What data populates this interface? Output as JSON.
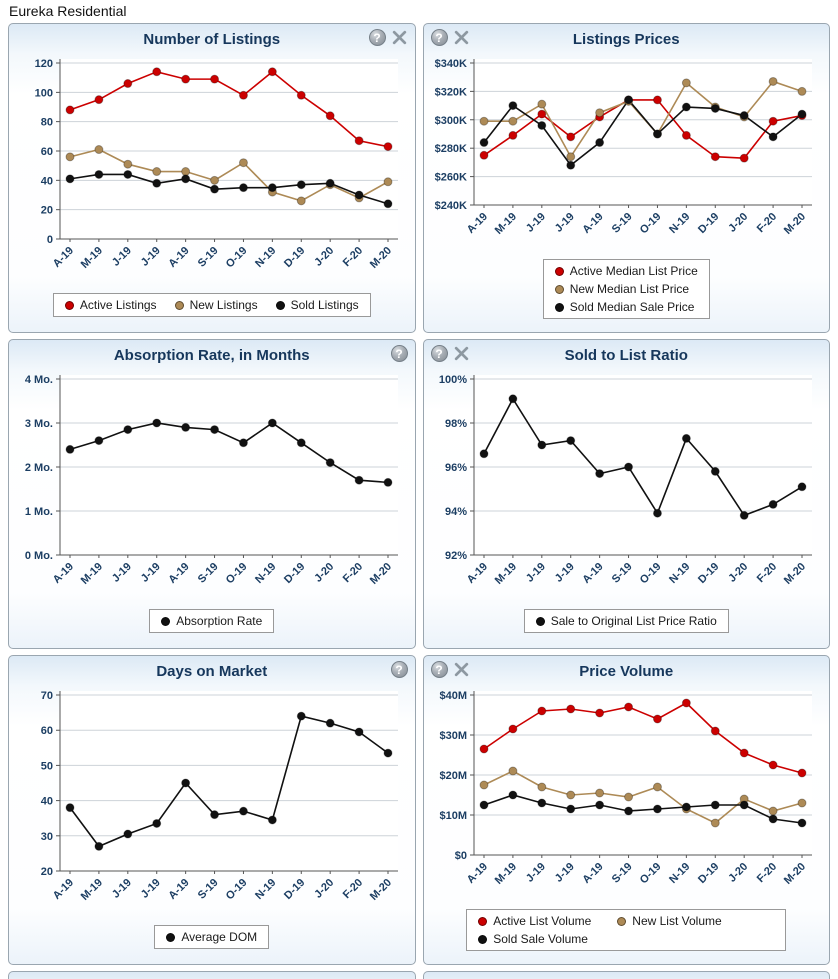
{
  "page_title": "Eureka Residential",
  "icons": {
    "help_glyph": "?"
  },
  "colors": {
    "active_series": "#cc0000",
    "new_series": "#ad8a56",
    "sold_series": "#111111",
    "panel_title": "#16375c",
    "axis_label": "#1c3e63",
    "grid_line": "#cdd3d8"
  },
  "panels": [
    {
      "title": "Number of Listings",
      "icons_position": "right",
      "has_tools_icon": true
    },
    {
      "title": "Listings Prices",
      "icons_position": "left",
      "has_tools_icon": true
    },
    {
      "title": "Absorption Rate, in Months",
      "icons_position": "right",
      "has_tools_icon": false
    },
    {
      "title": "Sold to List Ratio",
      "icons_position": "left",
      "has_tools_icon": true
    },
    {
      "title": "Days on Market",
      "icons_position": "right",
      "has_tools_icon": false
    },
    {
      "title": "Price Volume",
      "icons_position": "left",
      "has_tools_icon": true
    }
  ],
  "chart_data": [
    {
      "type": "line",
      "title": "Number of Listings",
      "categories": [
        "A-19",
        "M-19",
        "J-19",
        "J-19",
        "A-19",
        "S-19",
        "O-19",
        "N-19",
        "D-19",
        "J-20",
        "F-20",
        "M-20"
      ],
      "series": [
        {
          "name": "Active Listings",
          "color": "#cc0000",
          "values": [
            88,
            95,
            106,
            114,
            109,
            109,
            98,
            114,
            98,
            84,
            67,
            63
          ]
        },
        {
          "name": "New Listings",
          "color": "#ad8a56",
          "values": [
            56,
            61,
            51,
            46,
            46,
            40,
            52,
            32,
            26,
            37,
            28,
            39
          ]
        },
        {
          "name": "Sold Listings",
          "color": "#111111",
          "values": [
            41,
            44,
            44,
            38,
            41,
            34,
            35,
            35,
            37,
            38,
            30,
            24
          ]
        }
      ],
      "ylim": [
        0,
        120
      ],
      "ytick_values": [
        0,
        20,
        40,
        60,
        80,
        100,
        120
      ],
      "ytick_labels": [
        "0",
        "20",
        "40",
        "60",
        "80",
        "100",
        "120"
      ],
      "grid": true,
      "legend_position": "bottom",
      "legend_layout": "row"
    },
    {
      "type": "line",
      "title": "Listings Prices",
      "categories": [
        "A-19",
        "M-19",
        "J-19",
        "J-19",
        "A-19",
        "S-19",
        "O-19",
        "N-19",
        "D-19",
        "J-20",
        "F-20",
        "M-20"
      ],
      "series": [
        {
          "name": "Active Median List Price",
          "color": "#cc0000",
          "values": [
            275000,
            289000,
            304000,
            288000,
            302000,
            314000,
            314000,
            289000,
            274000,
            273000,
            299000,
            303000
          ]
        },
        {
          "name": "New Median List Price",
          "color": "#ad8a56",
          "values": [
            299000,
            299000,
            311000,
            274000,
            305000,
            313000,
            290000,
            326000,
            309000,
            302000,
            327000,
            320000
          ]
        },
        {
          "name": "Sold Median Sale Price",
          "color": "#111111",
          "values": [
            284000,
            310000,
            296000,
            268000,
            284000,
            314000,
            290000,
            309000,
            308000,
            303000,
            288000,
            304000
          ]
        }
      ],
      "ylim": [
        240000,
        340000
      ],
      "ytick_values": [
        240000,
        260000,
        280000,
        300000,
        320000,
        340000
      ],
      "ytick_labels": [
        "$240K",
        "$260K",
        "$280K",
        "$300K",
        "$320K",
        "$340K"
      ],
      "grid": true,
      "legend_position": "bottom",
      "legend_layout": "column"
    },
    {
      "type": "line",
      "title": "Absorption Rate, in Months",
      "categories": [
        "A-19",
        "M-19",
        "J-19",
        "J-19",
        "A-19",
        "S-19",
        "O-19",
        "N-19",
        "D-19",
        "J-20",
        "F-20",
        "M-20"
      ],
      "series": [
        {
          "name": "Absorption Rate",
          "color": "#111111",
          "values": [
            2.4,
            2.6,
            2.85,
            3.0,
            2.9,
            2.85,
            2.55,
            3.0,
            2.55,
            2.1,
            1.7,
            1.65
          ]
        }
      ],
      "ylim": [
        0,
        4
      ],
      "ytick_values": [
        0,
        1,
        2,
        3,
        4
      ],
      "ytick_labels": [
        "0 Mo.",
        "1 Mo.",
        "2 Mo.",
        "3 Mo.",
        "4 Mo."
      ],
      "grid": true,
      "legend_position": "bottom",
      "legend_layout": "row"
    },
    {
      "type": "line",
      "title": "Sold to List Ratio",
      "categories": [
        "A-19",
        "M-19",
        "J-19",
        "J-19",
        "A-19",
        "S-19",
        "O-19",
        "N-19",
        "D-19",
        "J-20",
        "F-20",
        "M-20"
      ],
      "series": [
        {
          "name": "Sale to Original List Price Ratio",
          "color": "#111111",
          "values": [
            96.6,
            99.1,
            97.0,
            97.2,
            95.7,
            96.0,
            93.9,
            97.3,
            95.8,
            93.8,
            94.3,
            95.1
          ]
        }
      ],
      "ylim": [
        92,
        100
      ],
      "ytick_values": [
        92,
        94,
        96,
        98,
        100
      ],
      "ytick_labels": [
        "92%",
        "94%",
        "96%",
        "98%",
        "100%"
      ],
      "grid": true,
      "legend_position": "bottom",
      "legend_layout": "row"
    },
    {
      "type": "line",
      "title": "Days on Market",
      "categories": [
        "A-19",
        "M-19",
        "J-19",
        "J-19",
        "A-19",
        "S-19",
        "O-19",
        "N-19",
        "D-19",
        "J-20",
        "F-20",
        "M-20"
      ],
      "series": [
        {
          "name": "Average DOM",
          "color": "#111111",
          "values": [
            38,
            27,
            30.5,
            33.5,
            45,
            36,
            37,
            34.5,
            64,
            62,
            59.5,
            53.5
          ]
        }
      ],
      "ylim": [
        20,
        70
      ],
      "ytick_values": [
        20,
        30,
        40,
        50,
        60,
        70
      ],
      "ytick_labels": [
        "20",
        "30",
        "40",
        "50",
        "60",
        "70"
      ],
      "grid": true,
      "legend_position": "bottom",
      "legend_layout": "row"
    },
    {
      "type": "line",
      "title": "Price Volume",
      "categories": [
        "A-19",
        "M-19",
        "J-19",
        "J-19",
        "A-19",
        "S-19",
        "O-19",
        "N-19",
        "D-19",
        "J-20",
        "F-20",
        "M-20"
      ],
      "series": [
        {
          "name": "Active List Volume",
          "color": "#cc0000",
          "values": [
            26500000,
            31500000,
            36000000,
            36500000,
            35500000,
            37000000,
            34000000,
            38000000,
            31000000,
            25500000,
            22500000,
            20500000
          ]
        },
        {
          "name": "New List Volume",
          "color": "#ad8a56",
          "values": [
            17500000,
            21000000,
            17000000,
            15000000,
            15500000,
            14500000,
            17000000,
            11500000,
            8000000,
            14000000,
            11000000,
            13000000
          ]
        },
        {
          "name": "Sold Sale Volume",
          "color": "#111111",
          "values": [
            12500000,
            15000000,
            13000000,
            11500000,
            12500000,
            11000000,
            11500000,
            12000000,
            12500000,
            12500000,
            9000000,
            8000000
          ]
        }
      ],
      "ylim": [
        0,
        40000000
      ],
      "ytick_values": [
        0,
        10000000,
        20000000,
        30000000,
        40000000
      ],
      "ytick_labels": [
        "$0",
        "$10M",
        "$20M",
        "$30M",
        "$40M"
      ],
      "grid": true,
      "legend_position": "bottom",
      "legend_layout": "wrap"
    }
  ]
}
